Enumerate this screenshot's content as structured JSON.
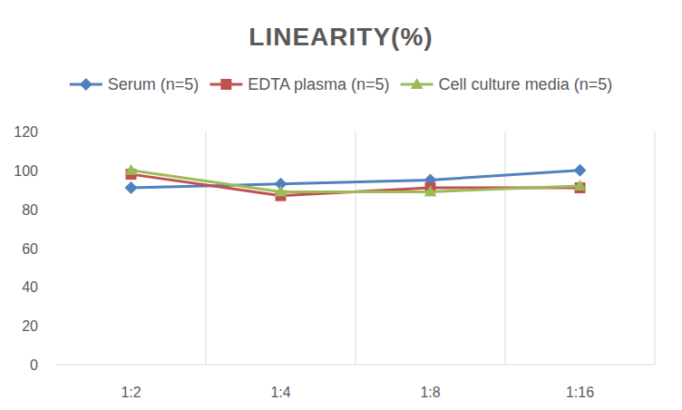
{
  "chart_data": {
    "type": "line",
    "title": "LINEARITY(%)",
    "categories": [
      "1:2",
      "1:4",
      "1:8",
      "1:16"
    ],
    "series": [
      {
        "name": "Serum (n=5)",
        "color": "#4f81bd",
        "marker": "diamond",
        "values": [
          91,
          93,
          95,
          100
        ]
      },
      {
        "name": "EDTA plasma (n=5)",
        "color": "#c0504d",
        "marker": "square",
        "values": [
          98,
          87,
          91,
          91
        ]
      },
      {
        "name": "Cell culture media (n=5)",
        "color": "#9bbb59",
        "marker": "triangle",
        "values": [
          100,
          89,
          89,
          92
        ]
      }
    ],
    "ylim": [
      0,
      120
    ],
    "yticks": [
      0,
      20,
      40,
      60,
      80,
      100,
      120
    ],
    "grid": true,
    "legend": "top"
  }
}
